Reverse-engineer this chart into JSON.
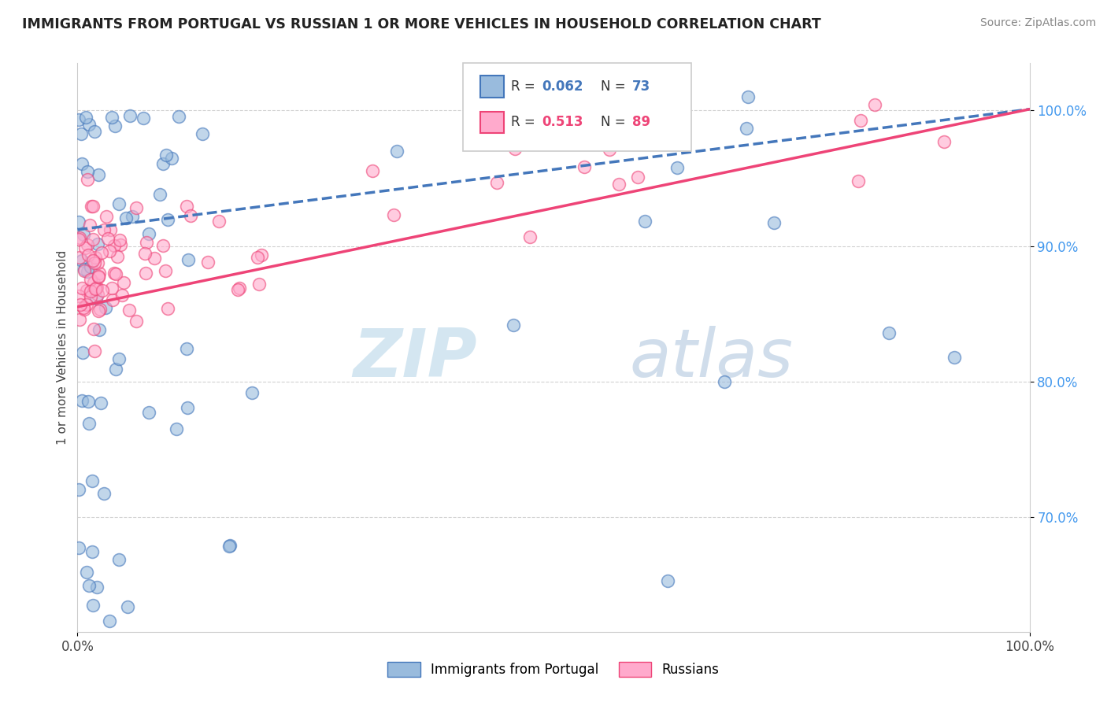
{
  "title": "IMMIGRANTS FROM PORTUGAL VS RUSSIAN 1 OR MORE VEHICLES IN HOUSEHOLD CORRELATION CHART",
  "source": "Source: ZipAtlas.com",
  "ylabel": "1 or more Vehicles in Household",
  "legend_blue_label": "Immigrants from Portugal",
  "legend_pink_label": "Russians",
  "blue_color": "#99BBDD",
  "pink_color": "#FFAACC",
  "blue_line_color": "#4477BB",
  "pink_line_color": "#EE4477",
  "ytick_color": "#4499EE",
  "watermark_color": "#D0E4F0",
  "ylim_min": 0.615,
  "ylim_max": 1.035,
  "xlim_min": 0,
  "xlim_max": 100,
  "blue_seed": 12,
  "pink_seed": 7
}
